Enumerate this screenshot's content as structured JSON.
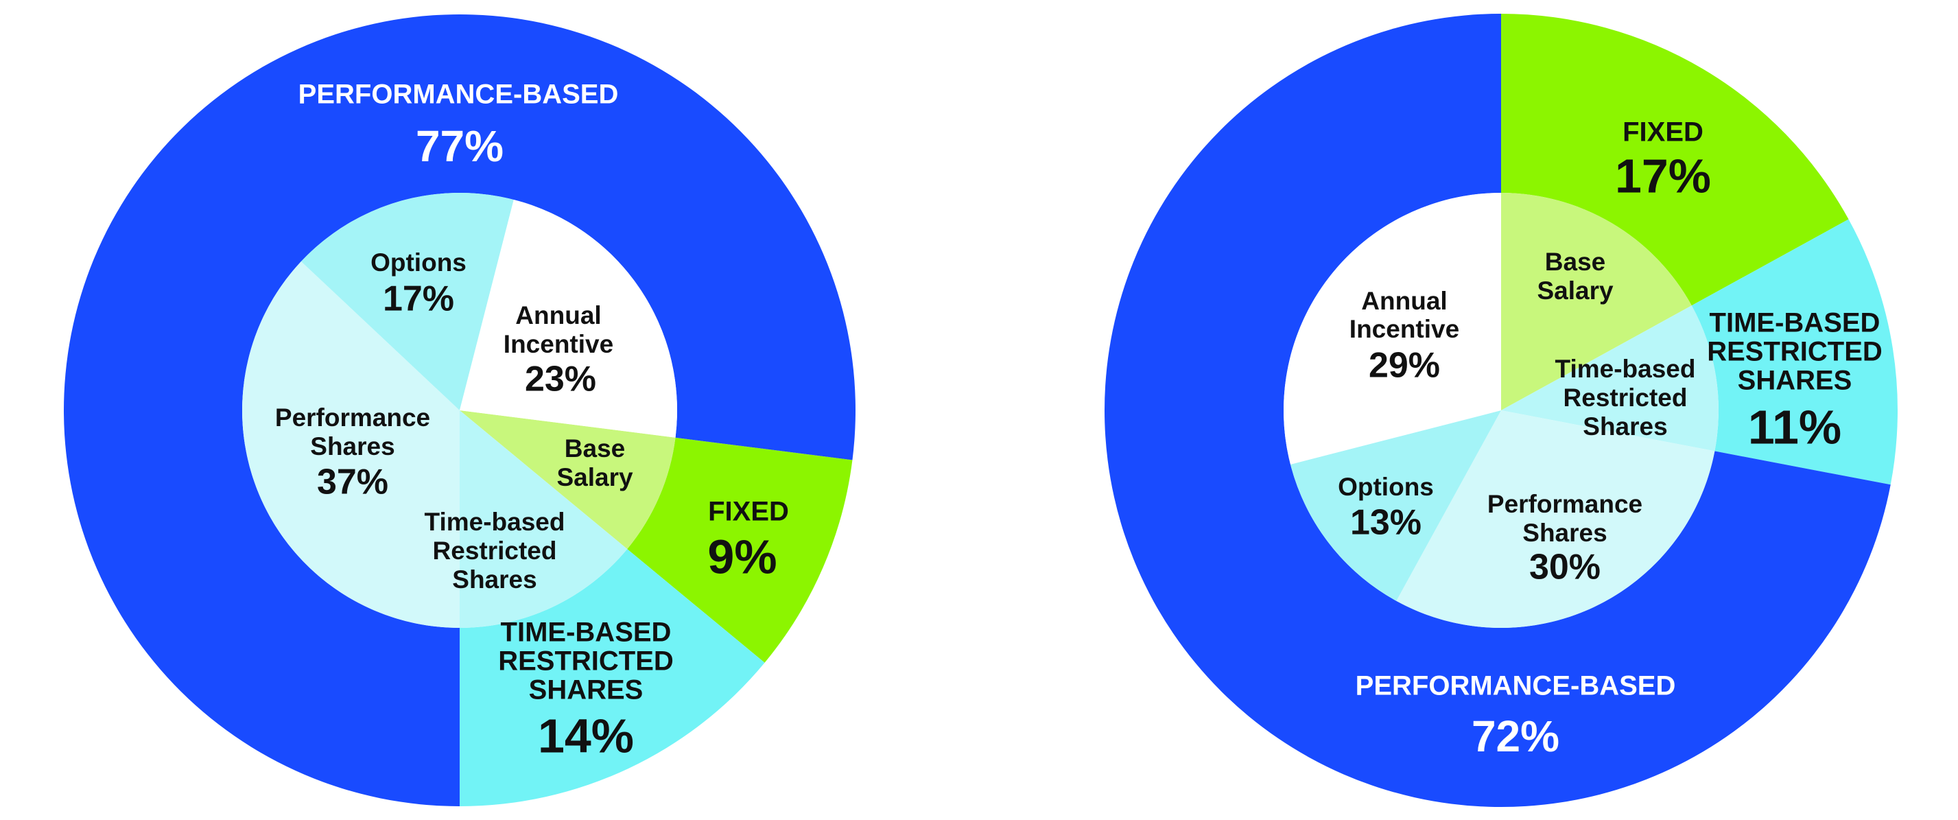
{
  "chart_data": [
    {
      "type": "pie",
      "variant": "nested-donut",
      "outer_ring": [
        {
          "label": "FIXED",
          "value": 9,
          "value_label": "9%",
          "color": "#8CF500"
        },
        {
          "label": "TIME-BASED RESTRICTED SHARES",
          "value": 14,
          "value_label": "14%",
          "color": "#72F3F6"
        },
        {
          "label": "PERFORMANCE-BASED",
          "value": 77,
          "value_label": "77%",
          "color": "#194BFF"
        }
      ],
      "inner_pie": [
        {
          "label": "Base Salary",
          "value": 9,
          "value_label": "",
          "color": "#C8F77C"
        },
        {
          "label": "Time-based Restricted Shares",
          "value": 14,
          "value_label": "",
          "color": "#B8F7F9"
        },
        {
          "label": "Performance Shares",
          "value": 37,
          "value_label": "37%",
          "color": "#D2F9FA"
        },
        {
          "label": "Options",
          "value": 17,
          "value_label": "17%",
          "color": "#A4F4F7"
        },
        {
          "label": "Annual Incentive",
          "value": 23,
          "value_label": "23%",
          "color": "#FFFFFF"
        }
      ]
    },
    {
      "type": "pie",
      "variant": "nested-donut",
      "outer_ring": [
        {
          "label": "FIXED",
          "value": 17,
          "value_label": "17%",
          "color": "#8CF500"
        },
        {
          "label": "TIME-BASED RESTRICTED SHARES",
          "value": 11,
          "value_label": "11%",
          "color": "#72F3F6"
        },
        {
          "label": "PERFORMANCE-BASED",
          "value": 72,
          "value_label": "72%",
          "color": "#194BFF"
        }
      ],
      "inner_pie": [
        {
          "label": "Base Salary",
          "value": 17,
          "value_label": "",
          "color": "#C8F77C"
        },
        {
          "label": "Time-based Restricted Shares",
          "value": 11,
          "value_label": "",
          "color": "#B8F7F9"
        },
        {
          "label": "Performance Shares",
          "value": 30,
          "value_label": "30%",
          "color": "#D2F9FA"
        },
        {
          "label": "Options",
          "value": 13,
          "value_label": "13%",
          "color": "#A4F4F7"
        },
        {
          "label": "Annual Incentive",
          "value": 29,
          "value_label": "29%",
          "color": "#FFFFFF"
        }
      ]
    }
  ]
}
